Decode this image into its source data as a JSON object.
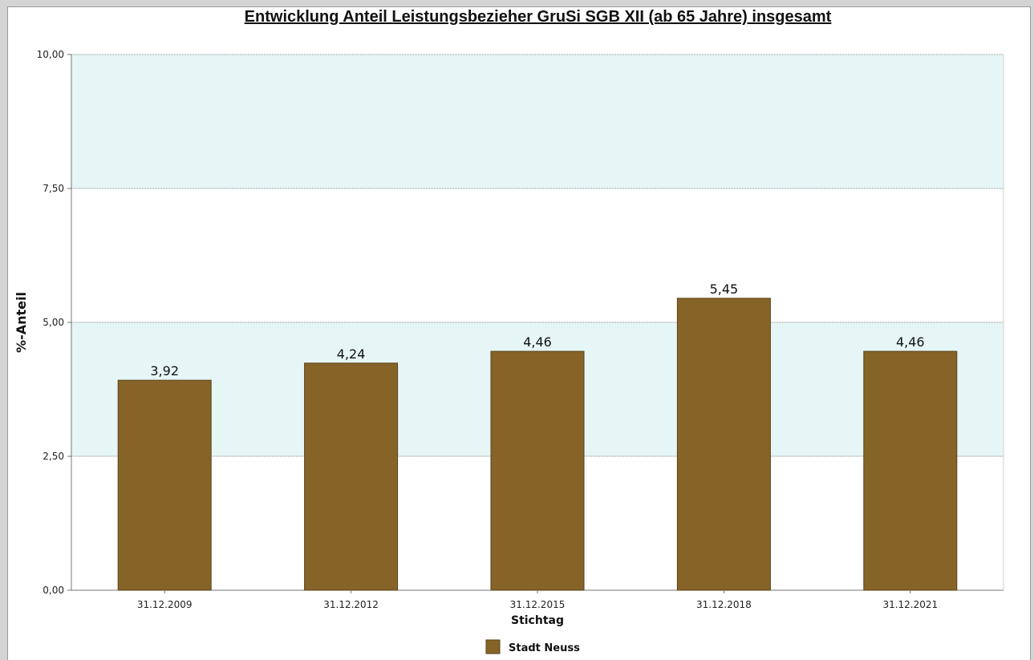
{
  "chart_data": {
    "type": "bar",
    "title": "Entwicklung Anteil Leistungsbezieher GruSi SGB XII (ab 65 Jahre) insgesamt",
    "xlabel": "Stichtag",
    "ylabel": "%-Anteil",
    "ylim": [
      0,
      10
    ],
    "yticks": [
      "0,00",
      "2,50",
      "5,00",
      "7,50",
      "10,00"
    ],
    "categories": [
      "31.12.2009",
      "31.12.2012",
      "31.12.2015",
      "31.12.2018",
      "31.12.2021"
    ],
    "series": [
      {
        "name": "Stadt Neuss",
        "values": [
          3.92,
          4.24,
          4.46,
          5.45,
          4.46
        ],
        "labels": [
          "3,92",
          "4,24",
          "4,46",
          "5,45",
          "4,46"
        ],
        "color": "#866428"
      }
    ],
    "bands": [
      [
        2.5,
        5.0
      ],
      [
        7.5,
        10.0
      ]
    ],
    "band_color": "#e6f6f7",
    "grid": true,
    "legend": "bottom-center"
  }
}
